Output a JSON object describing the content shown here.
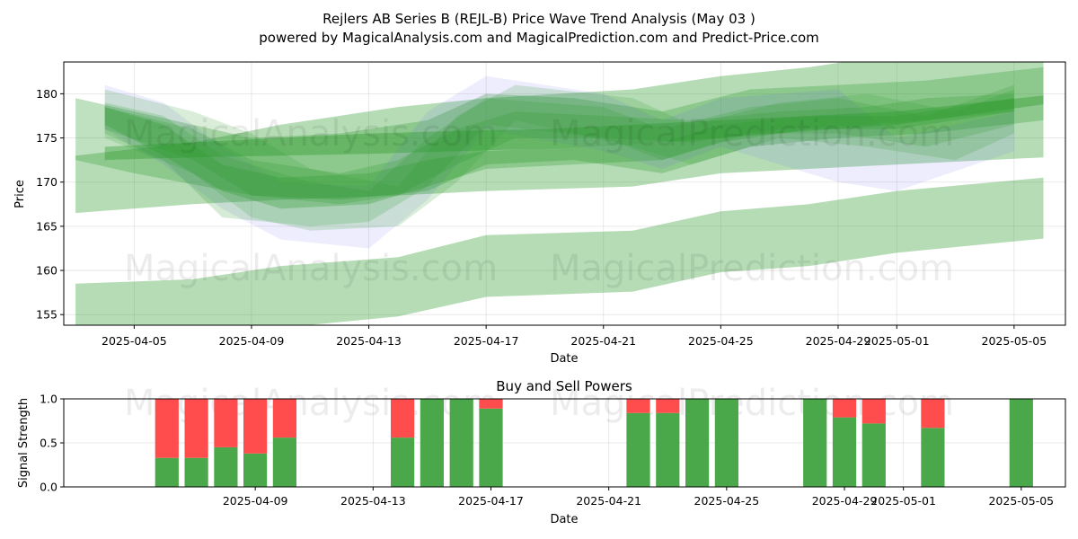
{
  "title_line1": "Rejlers AB Series B (REJL-B) Price Wave Trend Analysis (May 03 )",
  "title_line2": "powered by MagicalAnalysis.com and MagicalPrediction.com and Predict-Price.com",
  "watermarks": [
    "MagicalAnalysis.com",
    "MagicalPrediction.com"
  ],
  "colors": {
    "band_green": "#2e9a2e",
    "band_blue": "#6f6ff0",
    "buy": "#4aa84a",
    "sell": "#ff4c4c"
  },
  "chart_data": [
    {
      "type": "area",
      "title": "",
      "xlabel": "Date",
      "ylabel": "Price",
      "x_ticks": [
        "2025-04-05",
        "2025-04-09",
        "2025-04-13",
        "2025-04-17",
        "2025-04-21",
        "2025-04-25",
        "2025-04-29",
        "2025-05-01",
        "2025-05-05"
      ],
      "y_ticks": [
        155,
        160,
        165,
        170,
        175,
        180
      ],
      "ylim": [
        153.8,
        183.6
      ],
      "xlim": [
        "2025-04-02",
        "2025-05-06"
      ],
      "grid": true,
      "series": [
        {
          "x": [
            "2025-04-03",
            "2025-04-07",
            "2025-04-10",
            "2025-04-14",
            "2025-04-17",
            "2025-04-22",
            "2025-04-25",
            "2025-04-28",
            "2025-05-01",
            "2025-05-06"
          ],
          "upper": [
            173.0,
            174.5,
            176.5,
            178.5,
            179.5,
            180.5,
            182.0,
            183.0,
            184.5,
            185.0
          ],
          "lower": [
            166.5,
            167.5,
            168.0,
            168.5,
            169.0,
            169.5,
            171.0,
            171.5,
            172.0,
            172.8
          ],
          "opacity": 0.35
        },
        {
          "x": [
            "2025-04-03",
            "2025-04-07",
            "2025-04-10",
            "2025-04-14",
            "2025-04-17",
            "2025-04-22",
            "2025-04-25",
            "2025-04-28",
            "2025-05-01",
            "2025-05-06"
          ],
          "upper": [
            158.5,
            159.0,
            160.5,
            161.5,
            164.0,
            164.5,
            166.7,
            167.5,
            169.0,
            170.5
          ],
          "lower": [
            152.0,
            152.5,
            153.5,
            154.8,
            157.0,
            157.6,
            159.8,
            160.5,
            162.0,
            163.6
          ],
          "opacity": 0.35
        },
        {
          "x": [
            "2025-04-03",
            "2025-04-05",
            "2025-04-09",
            "2025-04-12",
            "2025-04-15",
            "2025-04-17",
            "2025-04-20",
            "2025-04-23",
            "2025-04-26",
            "2025-04-29",
            "2025-05-02",
            "2025-05-06"
          ],
          "upper": [
            179.5,
            178.0,
            175.0,
            175.5,
            177.0,
            180.0,
            179.5,
            178.0,
            180.5,
            181.0,
            181.5,
            183.0
          ],
          "lower": [
            172.5,
            171.0,
            168.5,
            168.0,
            169.0,
            172.0,
            172.5,
            171.0,
            174.0,
            175.0,
            175.5,
            177.0
          ],
          "opacity": 0.3
        },
        {
          "x": [
            "2025-04-04",
            "2025-04-06",
            "2025-04-08",
            "2025-04-10",
            "2025-04-13",
            "2025-04-15",
            "2025-04-17",
            "2025-04-21",
            "2025-04-23",
            "2025-04-25",
            "2025-04-29",
            "2025-05-01",
            "2025-05-05"
          ],
          "upper": [
            181.0,
            179.0,
            174.0,
            170.0,
            169.5,
            178.0,
            182.0,
            180.0,
            177.0,
            179.5,
            180.5,
            175.0,
            178.0
          ],
          "lower": [
            176.0,
            172.0,
            167.0,
            163.5,
            162.5,
            168.0,
            176.0,
            173.5,
            171.5,
            174.0,
            170.0,
            169.0,
            173.5
          ],
          "opacity": 0.12,
          "blue": true
        },
        {
          "x": [
            "2025-04-04",
            "2025-04-07",
            "2025-04-09",
            "2025-04-11",
            "2025-04-14",
            "2025-04-16",
            "2025-04-18",
            "2025-04-22",
            "2025-04-24",
            "2025-04-27",
            "2025-04-30",
            "2025-05-03",
            "2025-05-05"
          ],
          "upper": [
            180.5,
            178.0,
            175.5,
            171.5,
            169.5,
            177.5,
            181.0,
            179.5,
            176.5,
            179.0,
            180.0,
            178.0,
            180.5
          ],
          "lower": [
            175.0,
            171.0,
            166.0,
            164.5,
            165.0,
            170.0,
            177.0,
            174.0,
            172.0,
            175.0,
            174.0,
            172.5,
            175.5
          ],
          "opacity": 0.18
        },
        {
          "x": [
            "2025-04-04",
            "2025-04-06",
            "2025-04-08",
            "2025-04-11",
            "2025-04-13",
            "2025-04-15",
            "2025-04-17",
            "2025-04-21",
            "2025-04-23",
            "2025-04-26",
            "2025-04-29",
            "2025-05-02",
            "2025-05-05"
          ],
          "upper": [
            179.0,
            177.5,
            173.0,
            170.0,
            169.0,
            175.0,
            179.5,
            178.5,
            176.0,
            178.5,
            179.5,
            177.5,
            181.0
          ],
          "lower": [
            175.5,
            172.5,
            166.0,
            165.0,
            165.5,
            169.5,
            176.5,
            175.0,
            172.5,
            175.5,
            175.5,
            174.0,
            176.5
          ],
          "opacity": 0.2
        },
        {
          "x": [
            "2025-04-04",
            "2025-04-07",
            "2025-04-09",
            "2025-04-12",
            "2025-04-14",
            "2025-04-16",
            "2025-04-18",
            "2025-04-21",
            "2025-04-24",
            "2025-04-27",
            "2025-04-30",
            "2025-05-02",
            "2025-05-05"
          ],
          "upper": [
            178.5,
            176.0,
            172.5,
            171.0,
            172.5,
            176.0,
            178.0,
            177.5,
            177.0,
            178.0,
            178.5,
            179.5,
            180.0
          ],
          "lower": [
            176.0,
            172.5,
            168.5,
            167.5,
            168.5,
            172.0,
            175.0,
            175.0,
            174.5,
            176.0,
            176.5,
            177.0,
            178.0
          ],
          "opacity": 0.25
        },
        {
          "x": [
            "2025-04-04",
            "2025-04-07",
            "2025-04-10",
            "2025-04-13",
            "2025-04-16",
            "2025-04-19",
            "2025-04-22",
            "2025-04-25",
            "2025-04-28",
            "2025-05-01",
            "2025-05-06"
          ],
          "upper": [
            174.0,
            174.5,
            175.0,
            175.5,
            175.8,
            176.0,
            176.5,
            177.0,
            177.5,
            178.0,
            179.8
          ],
          "lower": [
            172.5,
            172.8,
            173.0,
            173.2,
            173.5,
            173.8,
            174.3,
            175.0,
            175.8,
            176.5,
            178.8
          ],
          "opacity": 0.4
        },
        {
          "x": [
            "2025-04-04",
            "2025-04-06",
            "2025-04-08",
            "2025-04-10",
            "2025-04-13",
            "2025-04-15",
            "2025-04-17",
            "2025-04-20",
            "2025-04-23",
            "2025-04-25",
            "2025-04-28",
            "2025-05-01",
            "2025-05-05"
          ],
          "upper": [
            178.5,
            176.5,
            172.0,
            170.5,
            171.0,
            172.5,
            173.5,
            174.0,
            174.5,
            176.5,
            177.5,
            177.5,
            179.5
          ],
          "lower": [
            176.5,
            173.0,
            169.0,
            167.0,
            167.5,
            169.5,
            171.5,
            172.0,
            172.5,
            174.5,
            176.0,
            176.0,
            178.0
          ],
          "opacity": 0.3
        }
      ]
    },
    {
      "type": "bar",
      "title": "Buy and Sell Powers",
      "xlabel": "Date",
      "ylabel": "Signal Strength",
      "x_ticks": [
        "2025-04-09",
        "2025-04-13",
        "2025-04-17",
        "2025-04-21",
        "2025-04-25",
        "2025-04-29",
        "2025-05-01",
        "2025-05-05"
      ],
      "y_ticks": [
        "0.0",
        "0.5",
        "1.0"
      ],
      "ylim": [
        0,
        1
      ],
      "xlim": [
        "2025-04-02",
        "2025-05-06"
      ],
      "categories": [
        "2025-04-06",
        "2025-04-07",
        "2025-04-08",
        "2025-04-09",
        "2025-04-10",
        "2025-04-14",
        "2025-04-15",
        "2025-04-16",
        "2025-04-17",
        "2025-04-22",
        "2025-04-23",
        "2025-04-24",
        "2025-04-25",
        "2025-04-28",
        "2025-04-29",
        "2025-04-30",
        "2025-05-02",
        "2025-05-05"
      ],
      "series": [
        {
          "name": "Buy",
          "values": [
            0.33,
            0.33,
            0.45,
            0.38,
            0.56,
            0.56,
            1.0,
            1.0,
            0.89,
            0.84,
            0.84,
            1.0,
            1.0,
            1.0,
            0.79,
            0.72,
            0.67,
            1.0
          ]
        },
        {
          "name": "Sell",
          "values": [
            0.67,
            0.67,
            0.55,
            0.62,
            0.44,
            0.44,
            0.0,
            0.0,
            0.11,
            0.16,
            0.16,
            0.0,
            0.0,
            0.0,
            0.21,
            0.28,
            0.33,
            0.0
          ]
        }
      ]
    }
  ]
}
